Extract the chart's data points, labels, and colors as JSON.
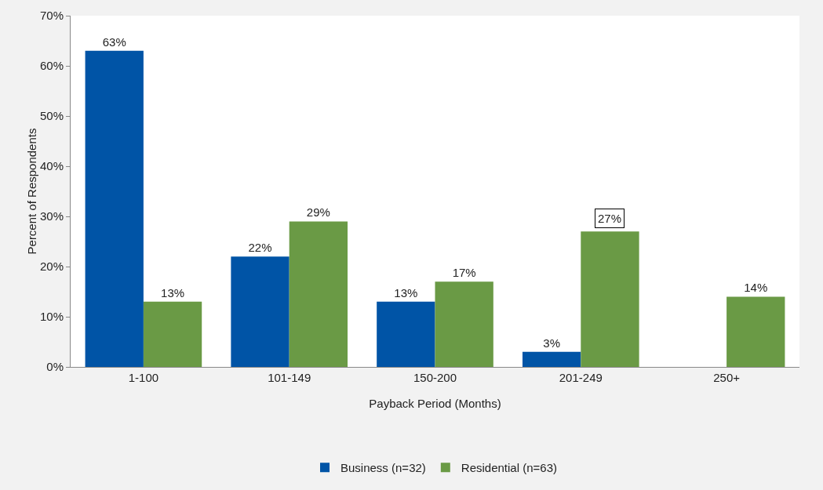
{
  "chart_data": {
    "type": "bar",
    "xlabel": "Payback Period (Months)",
    "ylabel": "Percent of Respondents",
    "categories": [
      "1-100",
      "101-149",
      "150-200",
      "201-249",
      "250+"
    ],
    "series": [
      {
        "name": "Business (n=32)",
        "color": "#0054a6",
        "values": [
          63,
          22,
          13,
          3,
          null
        ],
        "value_labels": [
          "63%",
          "22%",
          "13%",
          "3%",
          null
        ]
      },
      {
        "name": "Residential (n=63)",
        "color": "#6a9a45",
        "values": [
          13,
          29,
          17,
          27,
          14
        ],
        "value_labels": [
          "13%",
          "29%",
          "17%",
          null,
          "14%"
        ]
      }
    ],
    "annotations": [
      {
        "text": "27%",
        "x": "201-249",
        "y": 27
      }
    ],
    "ylim": [
      0,
      70
    ],
    "yticks": [
      {
        "value": 0,
        "label": "0%"
      },
      {
        "value": 10,
        "label": "10%"
      },
      {
        "value": 20,
        "label": "20%"
      },
      {
        "value": 30,
        "label": "30%"
      },
      {
        "value": 40,
        "label": "40%"
      },
      {
        "value": 50,
        "label": "50%"
      },
      {
        "value": 60,
        "label": "60%"
      },
      {
        "value": 70,
        "label": "70%"
      }
    ],
    "grid": false,
    "legend": "bottom"
  }
}
